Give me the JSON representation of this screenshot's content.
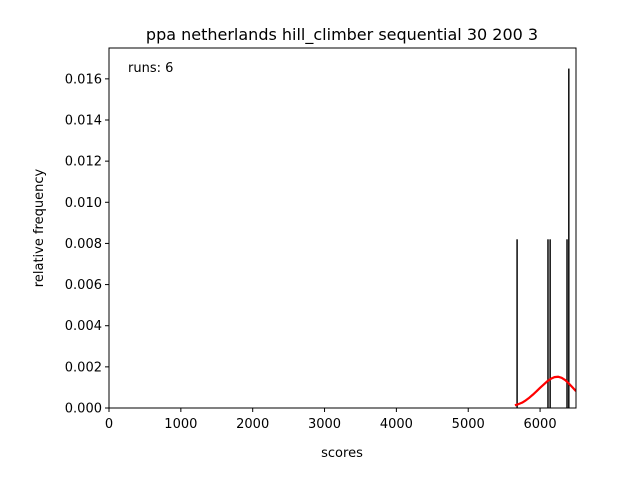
{
  "chart_data": {
    "type": "bar",
    "title": "ppa netherlands hill_climber sequential 30 200 3",
    "xlabel": "scores",
    "ylabel": "relative frequency",
    "annotation": "runs: 6",
    "xlim": [
      0,
      6500
    ],
    "ylim": [
      0,
      0.0175
    ],
    "xticks": [
      0,
      1000,
      2000,
      3000,
      4000,
      5000,
      6000
    ],
    "xtick_labels": [
      "0",
      "1000",
      "2000",
      "3000",
      "4000",
      "5000",
      "6000"
    ],
    "yticks": [
      0.0,
      0.002,
      0.004,
      0.006,
      0.008,
      0.01,
      0.012,
      0.014,
      0.016
    ],
    "ytick_labels": [
      "0.000",
      "0.002",
      "0.004",
      "0.006",
      "0.008",
      "0.010",
      "0.012",
      "0.014",
      "0.016"
    ],
    "grid": false,
    "bars": {
      "color": "#000000",
      "bin_width": 20,
      "x": [
        5680,
        6110,
        6140,
        6375,
        6400
      ],
      "values": [
        0.0082,
        0.0082,
        0.0082,
        0.0082,
        0.0165
      ]
    },
    "density_curve": {
      "color": "#ff0000",
      "x": [
        5650,
        5700,
        5750,
        5800,
        5850,
        5900,
        5950,
        6000,
        6050,
        6100,
        6150,
        6200,
        6250,
        6300,
        6350,
        6400,
        6450,
        6500
      ],
      "y": [
        0.00013,
        0.00019,
        0.00026,
        0.00037,
        0.0005,
        0.00065,
        0.00081,
        0.00098,
        0.00114,
        0.0013,
        0.00142,
        0.0015,
        0.00152,
        0.00147,
        0.00136,
        0.00119,
        0.00101,
        0.00082
      ]
    }
  }
}
